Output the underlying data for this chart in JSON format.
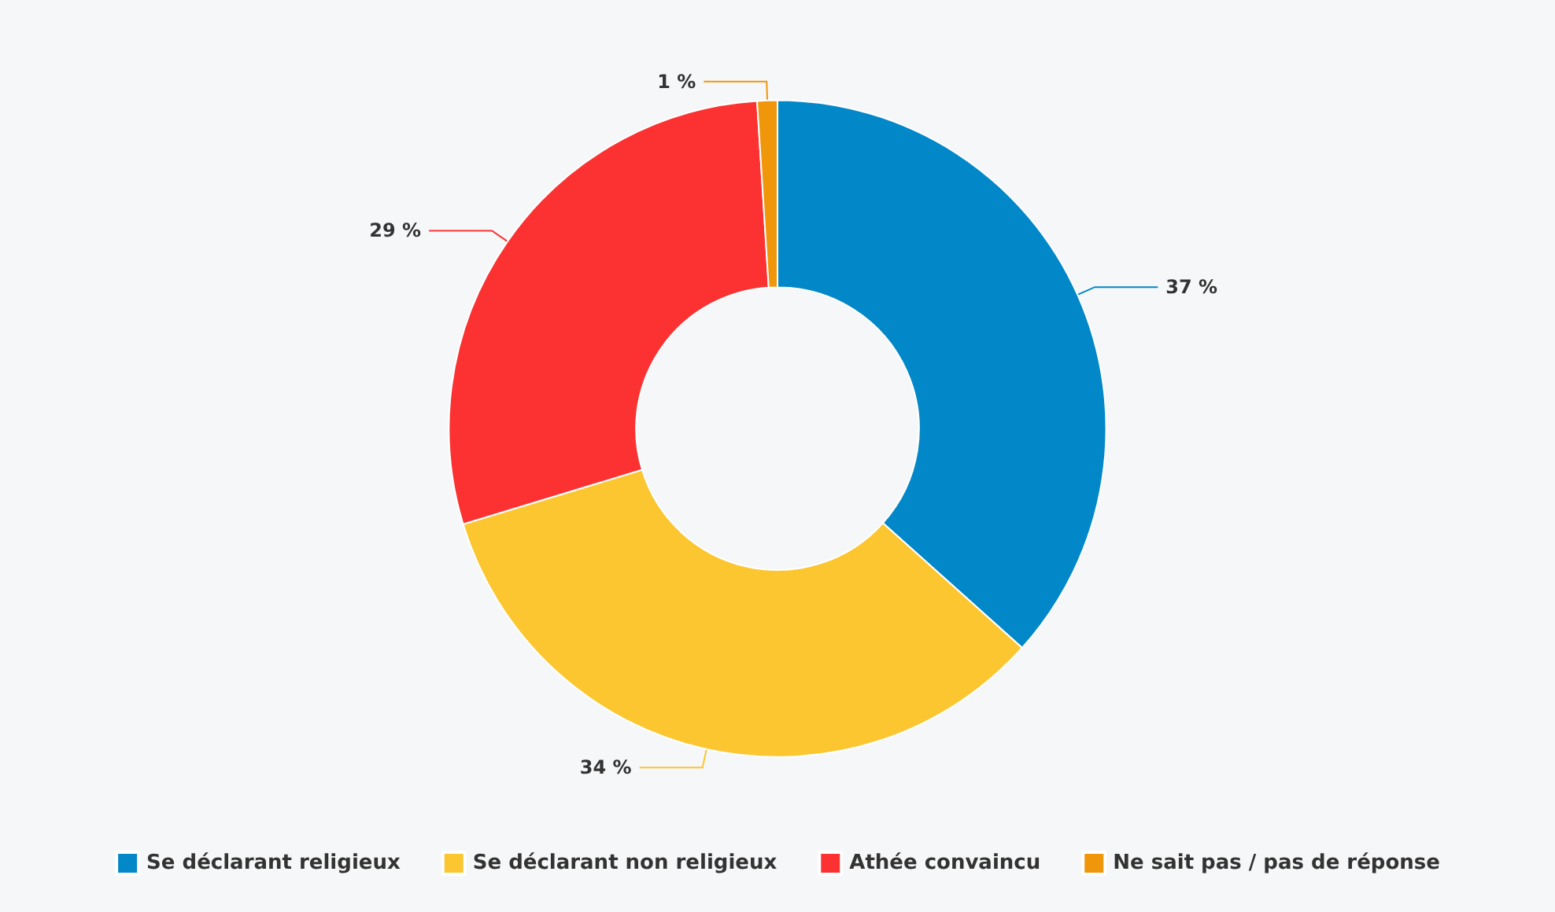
{
  "chart_data": {
    "type": "donut",
    "categories": [
      "Se déclarant religieux",
      "Se déclarant non religieux",
      "Athée convaincu",
      "Ne sait pas / pas de réponse"
    ],
    "values": [
      37,
      34,
      29,
      1
    ],
    "colors": [
      "#0288c8",
      "#fcc631",
      "#fc3232",
      "#f0960a"
    ],
    "value_labels": [
      "37 %",
      "34 %",
      "29 %",
      "1 %"
    ],
    "legend": "bottom"
  }
}
